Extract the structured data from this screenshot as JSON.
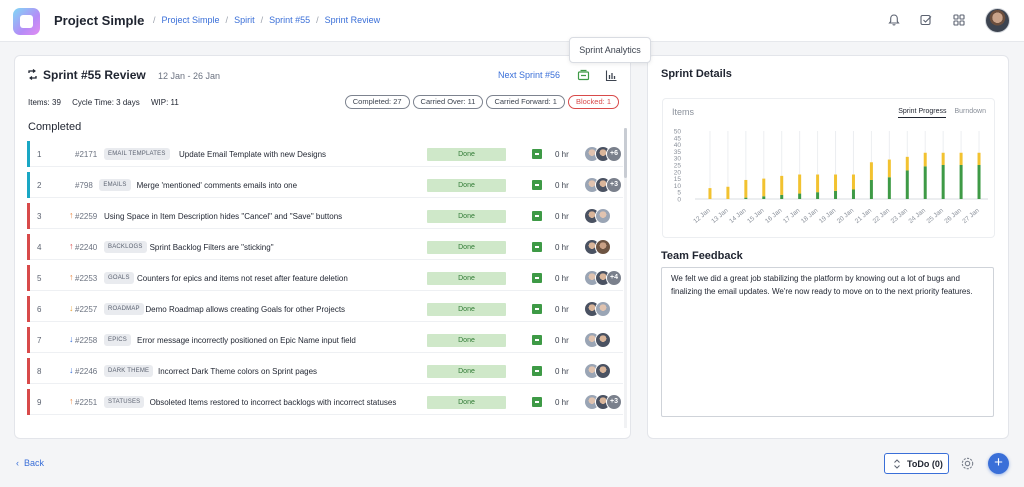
{
  "app": {
    "title": "Project Simple"
  },
  "breadcrumbs": [
    "Project Simple",
    "Spirit",
    "Sprint #55",
    "Sprint Review"
  ],
  "header_icons": [
    "bell-icon",
    "checkbox-icon",
    "grid-icon"
  ],
  "tooltip": "Sprint Analytics",
  "sprint": {
    "title": "Sprint #55 Review",
    "dates": "12 Jan - 26 Jan",
    "next_label": "Next Sprint #56",
    "stats": {
      "items": "Items: 39",
      "cycle_time": "Cycle Time: 3 days",
      "wip": "WIP: 11"
    },
    "pills": [
      {
        "label": "Completed: 27",
        "kind": "normal"
      },
      {
        "label": "Carried Over: 11",
        "kind": "normal"
      },
      {
        "label": "Carried Forward: 1",
        "kind": "normal"
      },
      {
        "label": "Blocked: 1",
        "kind": "red"
      }
    ],
    "section_title": "Completed"
  },
  "items": [
    {
      "num": "1",
      "key": "#2171",
      "tag": "EMAIL TEMPLATES",
      "title": "Update Email Template with new Designs",
      "status": "Done",
      "hours": "0 hr",
      "color": "#1aa7c4",
      "priority": "",
      "priority_color": "",
      "avatars": [
        "a1",
        "a2"
      ],
      "more": "+6"
    },
    {
      "num": "2",
      "key": "#798",
      "tag": "EMAILS",
      "title": "Merge 'mentioned' comments emails into one",
      "status": "Done",
      "hours": "0 hr",
      "color": "#1aa7c4",
      "priority": "",
      "priority_color": "",
      "avatars": [
        "a1",
        "a2"
      ],
      "more": "+3"
    },
    {
      "num": "3",
      "key": "#2259",
      "tag": "",
      "title": "Using Space in Item Description hides \"Cancel\" and \"Save\" buttons",
      "status": "Done",
      "hours": "0 hr",
      "color": "#d84a4a",
      "priority": "↑",
      "priority_color": "#e8833a",
      "avatars": [
        "a2",
        "a1"
      ],
      "more": ""
    },
    {
      "num": "4",
      "key": "#2240",
      "tag": "BACKLOGS",
      "title": "Sprint Backlog Filters are \"sticking\"",
      "status": "Done",
      "hours": "0 hr",
      "color": "#d84a4a",
      "priority": "↑",
      "priority_color": "#d84a4a",
      "avatars": [
        "a2",
        "a3"
      ],
      "more": ""
    },
    {
      "num": "5",
      "key": "#2253",
      "tag": "GOALS",
      "title": "Counters for epics and items not reset after feature deletion",
      "status": "Done",
      "hours": "0 hr",
      "color": "#d84a4a",
      "priority": "↑",
      "priority_color": "#e8833a",
      "avatars": [
        "a1",
        "a2"
      ],
      "more": "+4"
    },
    {
      "num": "6",
      "key": "#2257",
      "tag": "ROADMAP",
      "title": "Demo Roadmap allows creating Goals for other Projects",
      "status": "Done",
      "hours": "0 hr",
      "color": "#d84a4a",
      "priority": "↓",
      "priority_color": "#e8a53a",
      "avatars": [
        "a2",
        "a1"
      ],
      "more": ""
    },
    {
      "num": "7",
      "key": "#2258",
      "tag": "EPICS",
      "title": "Error message incorrectly positioned on Epic Name input field",
      "status": "Done",
      "hours": "0 hr",
      "color": "#d84a4a",
      "priority": "↓",
      "priority_color": "#3a6fd8",
      "avatars": [
        "a1",
        "a2"
      ],
      "more": ""
    },
    {
      "num": "8",
      "key": "#2246",
      "tag": "DARK THEME",
      "title": "Incorrect Dark Theme colors on Sprint pages",
      "status": "Done",
      "hours": "0 hr",
      "color": "#d84a4a",
      "priority": "↓",
      "priority_color": "#3a6fd8",
      "avatars": [
        "a1",
        "a2"
      ],
      "more": ""
    },
    {
      "num": "9",
      "key": "#2251",
      "tag": "STATUSES",
      "title": "Obsoleted Items restored to incorrect backlogs with incorrect statuses",
      "status": "Done",
      "hours": "0 hr",
      "color": "#d84a4a",
      "priority": "↑",
      "priority_color": "#e8833a",
      "avatars": [
        "a1",
        "a2"
      ],
      "more": "+3"
    }
  ],
  "details": {
    "title": "Sprint Details",
    "chart_label": "Items",
    "tabs": [
      {
        "label": "Sprint Progress",
        "active": true
      },
      {
        "label": "Burndown",
        "active": false
      }
    ],
    "feedback_title": "Team Feedback",
    "feedback_text": "We felt we did a great job stabilizing the platform by knowing out a lot of bugs and finalizing the email updates. We're now ready to move on to the next priority features."
  },
  "chart_data": {
    "type": "bar",
    "title": "",
    "ylabel": "Items",
    "ylim": [
      0,
      50
    ],
    "yticks": [
      0,
      5,
      10,
      15,
      20,
      25,
      30,
      35,
      40,
      45,
      50
    ],
    "categories": [
      "12 Jan",
      "13 Jan",
      "14 Jan",
      "15 Jan",
      "16 Jan",
      "17 Jan",
      "18 Jan",
      "19 Jan",
      "20 Jan",
      "21 Jan",
      "22 Jan",
      "23 Jan",
      "24 Jan",
      "25 Jan",
      "26 Jan",
      "27 Jan"
    ],
    "series": [
      {
        "color": "#3e9a46",
        "values": [
          0,
          0,
          1,
          2,
          3,
          4,
          5,
          6,
          7,
          14,
          16,
          21,
          24,
          25,
          25,
          25
        ]
      },
      {
        "color": "#f2c230",
        "values": [
          8,
          9,
          13,
          13,
          14,
          14,
          13,
          12,
          11,
          13,
          13,
          10,
          10,
          9,
          9,
          9
        ]
      }
    ],
    "stacked": true,
    "grid": true
  },
  "footer": {
    "back_label": "Back",
    "todo_label": "ToDo (0)",
    "fab_label": "+"
  },
  "colors": {
    "accent": "#3a6fd8",
    "done_bg": "#cfe8c9",
    "done_text": "#2f7a34",
    "blocked": "#d84a4a"
  }
}
